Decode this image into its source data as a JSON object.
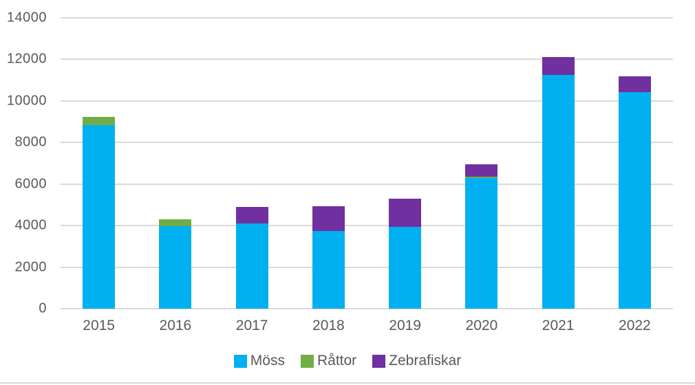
{
  "chart_data": {
    "type": "bar",
    "stacked": true,
    "title": "",
    "xlabel": "",
    "ylabel": "",
    "categories": [
      "2015",
      "2016",
      "2017",
      "2018",
      "2019",
      "2020",
      "2021",
      "2022"
    ],
    "series": [
      {
        "name": "Möss",
        "color": "#00B0F0",
        "values": [
          8840,
          3970,
          4100,
          3730,
          3950,
          6300,
          11250,
          10420
        ]
      },
      {
        "name": "Råttor",
        "color": "#70AD47",
        "values": [
          400,
          330,
          0,
          0,
          0,
          50,
          0,
          0
        ]
      },
      {
        "name": "Zebrafiskar",
        "color": "#7030A0",
        "values": [
          0,
          0,
          800,
          1190,
          1350,
          600,
          850,
          780
        ]
      }
    ],
    "totals": [
      9240,
      4300,
      4900,
      4920,
      5300,
      6950,
      12100,
      11200
    ],
    "ylim": [
      0,
      14000
    ],
    "y_ticks": [
      "0",
      "2000",
      "4000",
      "6000",
      "8000",
      "10000",
      "12000",
      "14000"
    ],
    "grid": true,
    "legend_position": "bottom",
    "legend_labels": [
      "Möss",
      "Råttor",
      "Zebrafiskar"
    ]
  },
  "colors": {
    "axis_text": "#595959",
    "gridline": "#D9D9D9",
    "background": "#FFFFFF"
  }
}
